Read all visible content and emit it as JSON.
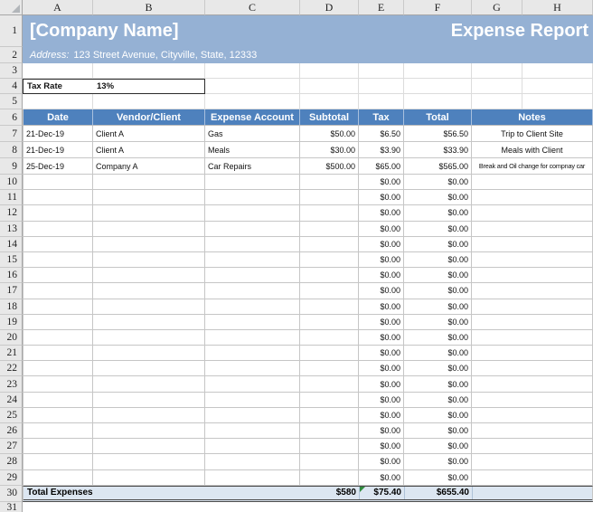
{
  "colors": {
    "band_blue": "#95B1D4",
    "header_blue": "#4E81BD",
    "total_fill": "#DCE6F1",
    "flag_green": "#2E8B3D"
  },
  "column_headers": [
    "A",
    "B",
    "C",
    "D",
    "E",
    "F",
    "G",
    "H"
  ],
  "rows": {
    "first": 1,
    "last": 31
  },
  "title_block": {
    "company_name": "[Company Name]",
    "report_title": "Expense Report",
    "address_label": "Address:",
    "address_value": "123 Street Avenue, Cityville, State, 12333"
  },
  "tax_rate": {
    "label": "Tax Rate",
    "value": "13%"
  },
  "table": {
    "headers": [
      "Date",
      "Vendor/Client",
      "Expense Account",
      "Subtotal",
      "Tax",
      "Total",
      "Notes"
    ],
    "expenses": [
      {
        "date": "21-Dec-19",
        "vendor": "Client A",
        "account": "Gas",
        "subtotal": "$50.00",
        "tax": "$6.50",
        "total": "$56.50",
        "notes": "Trip to Client Site"
      },
      {
        "date": "21-Dec-19",
        "vendor": "Client A",
        "account": "Meals",
        "subtotal": "$30.00",
        "tax": "$3.90",
        "total": "$33.90",
        "notes": "Meals with Client"
      },
      {
        "date": "25-Dec-19",
        "vendor": "Company A",
        "account": "Car Repairs",
        "subtotal": "$500.00",
        "tax": "$65.00",
        "total": "$565.00",
        "notes": "Break and Oil change for compnay car"
      }
    ],
    "empty_row": {
      "tax": "$0.00",
      "total": "$0.00"
    },
    "empty_row_count": 20,
    "totals": {
      "label": "Total Expenses",
      "subtotal": "$580",
      "tax": "$75.40",
      "total": "$655.40"
    }
  }
}
